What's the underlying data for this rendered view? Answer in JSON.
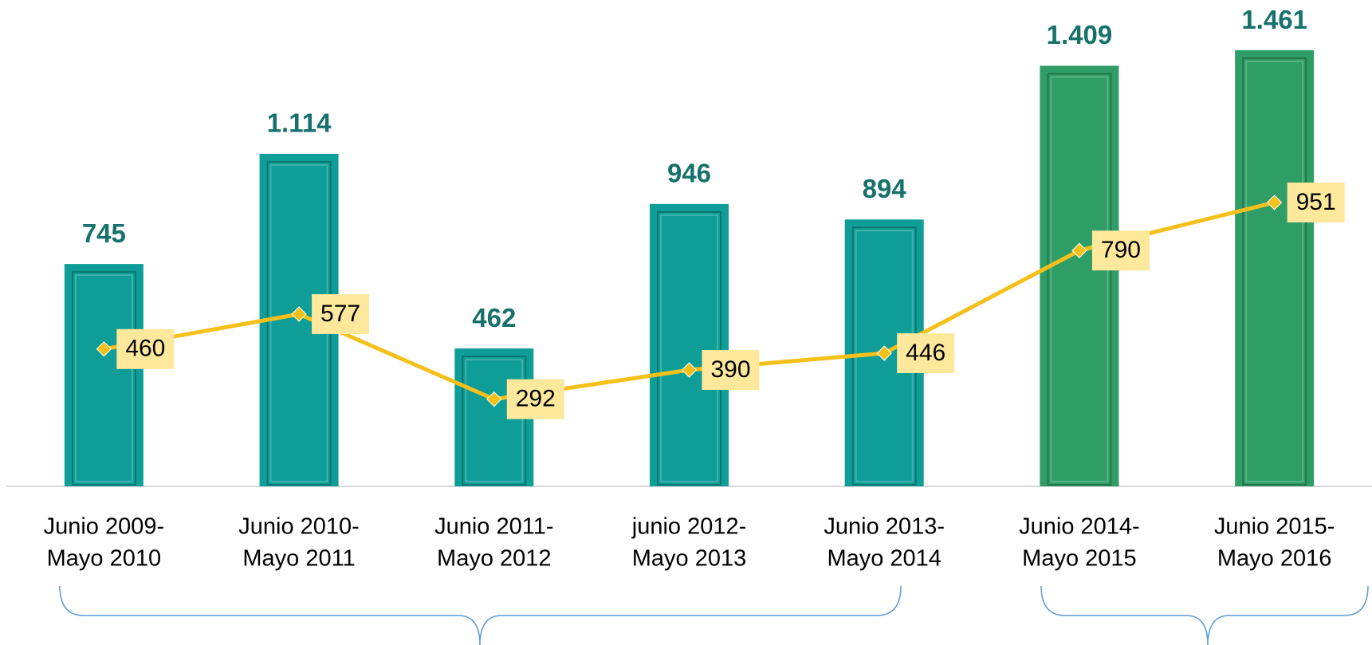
{
  "chart_data": {
    "type": "bar",
    "categories": [
      [
        "Junio 2009-",
        "Mayo 2010"
      ],
      [
        "Junio 2010-",
        "Mayo 2011"
      ],
      [
        "Junio 2011-",
        "Mayo 2012"
      ],
      [
        "junio 2012-",
        "Mayo 2013"
      ],
      [
        "Junio 2013-",
        "Mayo 2014"
      ],
      [
        "Junio 2014-",
        "Mayo 2015"
      ],
      [
        "Junio 2015-",
        "Mayo 2016"
      ]
    ],
    "series": [
      {
        "type": "bar",
        "values": [
          745,
          1114,
          462,
          946,
          894,
          1409,
          1461
        ],
        "value_labels": [
          "745",
          "1.114",
          "462",
          "946",
          "894",
          "1.409",
          "1.461"
        ],
        "colors": [
          "#0f9e97",
          "#0f9e97",
          "#0f9e97",
          "#0f9e97",
          "#0f9e97",
          "#2f9e66",
          "#2f9e66"
        ]
      },
      {
        "type": "line",
        "color": "#f6c01a",
        "values": [
          460,
          577,
          292,
          390,
          446,
          790,
          951
        ]
      }
    ],
    "ylim": [
      0,
      1600
    ]
  }
}
